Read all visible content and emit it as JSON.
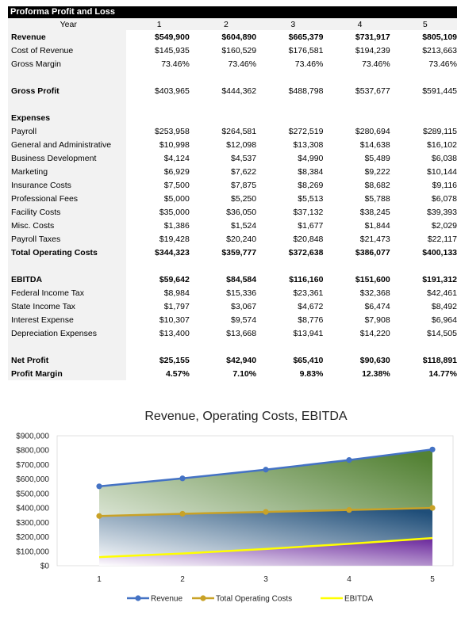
{
  "table": {
    "title": "Proforma Profit and Loss",
    "year_label": "Year",
    "years": [
      "1",
      "2",
      "3",
      "4",
      "5"
    ],
    "rows": [
      {
        "label": "Revenue",
        "bold": true,
        "values": [
          "$549,900",
          "$604,890",
          "$665,379",
          "$731,917",
          "$805,109"
        ]
      },
      {
        "label": "Cost of Revenue",
        "bold": false,
        "values": [
          "$145,935",
          "$160,529",
          "$176,581",
          "$194,239",
          "$213,663"
        ]
      },
      {
        "label": "Gross Margin",
        "bold": false,
        "values": [
          "73.46%",
          "73.46%",
          "73.46%",
          "73.46%",
          "73.46%"
        ]
      },
      {
        "spacer": true
      },
      {
        "label": "Gross Profit",
        "bold": true,
        "values": [
          "$403,965",
          "$444,362",
          "$488,798",
          "$537,677",
          "$591,445"
        ],
        "valuesNormal": true
      },
      {
        "spacer": true
      },
      {
        "label": "Expenses",
        "bold": true,
        "values": [
          "",
          "",
          "",
          "",
          ""
        ]
      },
      {
        "label": "Payroll",
        "bold": false,
        "values": [
          "$253,958",
          "$264,581",
          "$272,519",
          "$280,694",
          "$289,115"
        ]
      },
      {
        "label": "General and Administrative",
        "bold": false,
        "values": [
          "$10,998",
          "$12,098",
          "$13,308",
          "$14,638",
          "$16,102"
        ]
      },
      {
        "label": "Business Development",
        "bold": false,
        "values": [
          "$4,124",
          "$4,537",
          "$4,990",
          "$5,489",
          "$6,038"
        ]
      },
      {
        "label": "Marketing",
        "bold": false,
        "values": [
          "$6,929",
          "$7,622",
          "$8,384",
          "$9,222",
          "$10,144"
        ]
      },
      {
        "label": "Insurance Costs",
        "bold": false,
        "values": [
          "$7,500",
          "$7,875",
          "$8,269",
          "$8,682",
          "$9,116"
        ]
      },
      {
        "label": "Professional Fees",
        "bold": false,
        "values": [
          "$5,000",
          "$5,250",
          "$5,513",
          "$5,788",
          "$6,078"
        ]
      },
      {
        "label": "Facility Costs",
        "bold": false,
        "values": [
          "$35,000",
          "$36,050",
          "$37,132",
          "$38,245",
          "$39,393"
        ]
      },
      {
        "label": "Misc. Costs",
        "bold": false,
        "values": [
          "$1,386",
          "$1,524",
          "$1,677",
          "$1,844",
          "$2,029"
        ]
      },
      {
        "label": "Payroll Taxes",
        "bold": false,
        "values": [
          "$19,428",
          "$20,240",
          "$20,848",
          "$21,473",
          "$22,117"
        ]
      },
      {
        "label": "Total Operating Costs",
        "bold": true,
        "values": [
          "$344,323",
          "$359,777",
          "$372,638",
          "$386,077",
          "$400,133"
        ]
      },
      {
        "spacer": true
      },
      {
        "label": "EBITDA",
        "bold": true,
        "values": [
          "$59,642",
          "$84,584",
          "$116,160",
          "$151,600",
          "$191,312"
        ]
      },
      {
        "label": "Federal Income Tax",
        "bold": false,
        "values": [
          "$8,984",
          "$15,336",
          "$23,361",
          "$32,368",
          "$42,461"
        ]
      },
      {
        "label": "State Income Tax",
        "bold": false,
        "values": [
          "$1,797",
          "$3,067",
          "$4,672",
          "$6,474",
          "$8,492"
        ]
      },
      {
        "label": "Interest Expense",
        "bold": false,
        "values": [
          "$10,307",
          "$9,574",
          "$8,776",
          "$7,908",
          "$6,964"
        ]
      },
      {
        "label": "Depreciation Expenses",
        "bold": false,
        "values": [
          "$13,400",
          "$13,668",
          "$13,941",
          "$14,220",
          "$14,505"
        ]
      },
      {
        "spacer": true
      },
      {
        "label": "Net Profit",
        "bold": true,
        "values": [
          "$25,155",
          "$42,940",
          "$65,410",
          "$90,630",
          "$118,891"
        ]
      },
      {
        "label": "Profit Margin",
        "bold": true,
        "values": [
          "4.57%",
          "7.10%",
          "9.83%",
          "12.38%",
          "14.77%"
        ]
      }
    ]
  },
  "chart_data": {
    "type": "area",
    "title": "Revenue, Operating Costs, EBITDA",
    "x": [
      1,
      2,
      3,
      4,
      5
    ],
    "xlabels": [
      "1",
      "2",
      "3",
      "4",
      "5"
    ],
    "ylim": [
      0,
      900000
    ],
    "yticks": [
      0,
      100000,
      200000,
      300000,
      400000,
      500000,
      600000,
      700000,
      800000,
      900000
    ],
    "ytick_labels": [
      "$0",
      "$100,000",
      "$200,000",
      "$300,000",
      "$400,000",
      "$500,000",
      "$600,000",
      "$700,000",
      "$800,000",
      "$900,000"
    ],
    "grid": false,
    "legend": "bottom",
    "series": [
      {
        "name": "Revenue",
        "values": [
          549900,
          604890,
          665379,
          731917,
          805109
        ],
        "color": "#4472c4",
        "fill_end": "#548235"
      },
      {
        "name": "Total Operating Costs",
        "values": [
          344323,
          359777,
          372638,
          386077,
          400133
        ],
        "color": "#c9a227",
        "fill_end": "#1f4e79"
      },
      {
        "name": "EBITDA",
        "values": [
          59642,
          84584,
          116160,
          151600,
          191312
        ],
        "color": "#ffff00",
        "fill_end": "#7030a0"
      }
    ]
  }
}
